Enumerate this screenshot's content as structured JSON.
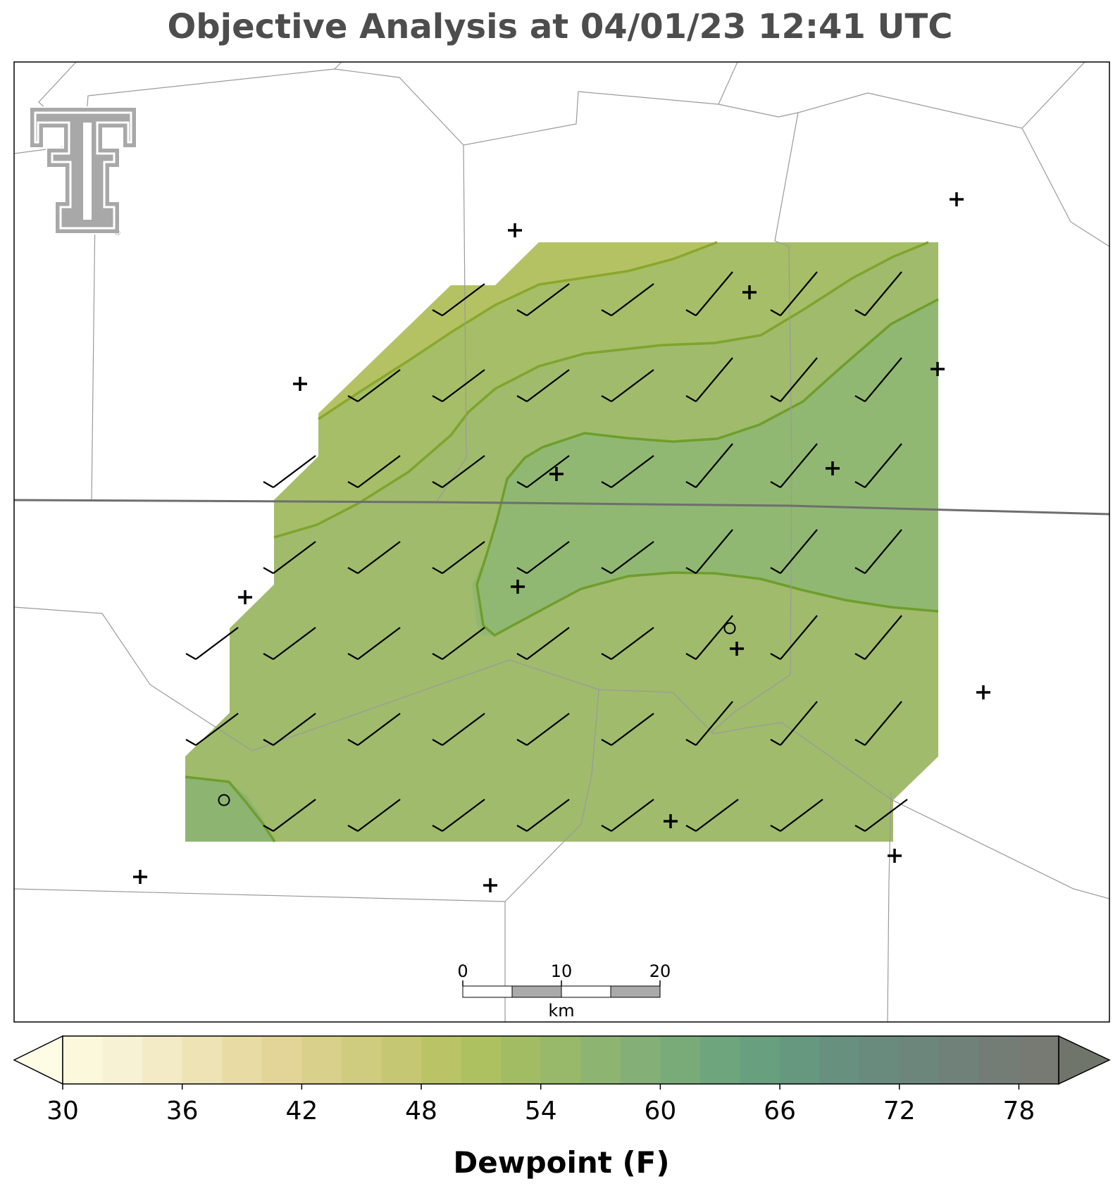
{
  "title": "Objective Analysis at 04/01/23 12:41 UTC",
  "colorbar": {
    "label": "Dewpoint (F)",
    "ticks": [
      "30",
      "36",
      "42",
      "48",
      "54",
      "60",
      "66",
      "72",
      "78"
    ],
    "min": 30,
    "max": 80,
    "step": 2,
    "colors": [
      "#fcf8dc",
      "#f7f2d3",
      "#f2ebc6",
      "#ede3b5",
      "#e8dba4",
      "#e2d597",
      "#d9d08b",
      "#cfcb7f",
      "#c6c772",
      "#bac466",
      "#aec160",
      "#a2bc63",
      "#98b86a",
      "#8eb472",
      "#84af76",
      "#79ab79",
      "#6fa57d",
      "#689f7f",
      "#66977f",
      "#67907f",
      "#698b7e",
      "#6c867c",
      "#70817a",
      "#747c76",
      "#767a72"
    ],
    "under_color": "#fffce6",
    "over_color": "#6f756a"
  },
  "scale_bar": {
    "labels": [
      "0",
      "10",
      "20"
    ],
    "unit": "km"
  },
  "logo": {
    "name": "Texas Tech Double T",
    "mark": "®"
  },
  "analysis": {
    "fill_colors": {
      "band_48_50": "#b5c264",
      "band_50_54": "#a5be6a",
      "band_54_58": "#a0bb6c",
      "band_58_62": "#91b872"
    },
    "contour_color": "#6e9e2c"
  },
  "stations": {
    "calm_circles": 2,
    "missing_wind": 14
  }
}
